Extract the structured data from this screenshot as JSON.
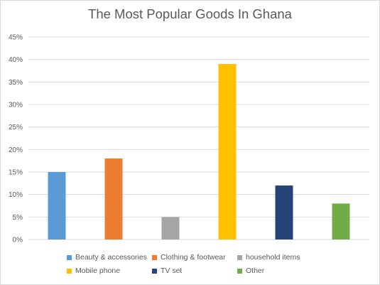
{
  "chart_data": {
    "type": "bar",
    "title": "The Most Popular Goods In Ghana",
    "xlabel": "",
    "ylabel": "",
    "ylim": [
      0,
      45
    ],
    "yticks": [
      "0%",
      "5%",
      "10%",
      "15%",
      "20%",
      "25%",
      "30%",
      "35%",
      "40%",
      "45%"
    ],
    "grid": true,
    "legend_position": "bottom",
    "categories": [
      "Beauty & accessories",
      "Clothing & footwear",
      "household items",
      "Mobile phone",
      "TV set",
      "Other"
    ],
    "values": [
      15,
      18,
      5,
      39,
      12,
      8
    ],
    "colors": [
      "#5b9bd5",
      "#ed7d31",
      "#a5a5a5",
      "#ffc000",
      "#264478",
      "#70ad47"
    ]
  }
}
